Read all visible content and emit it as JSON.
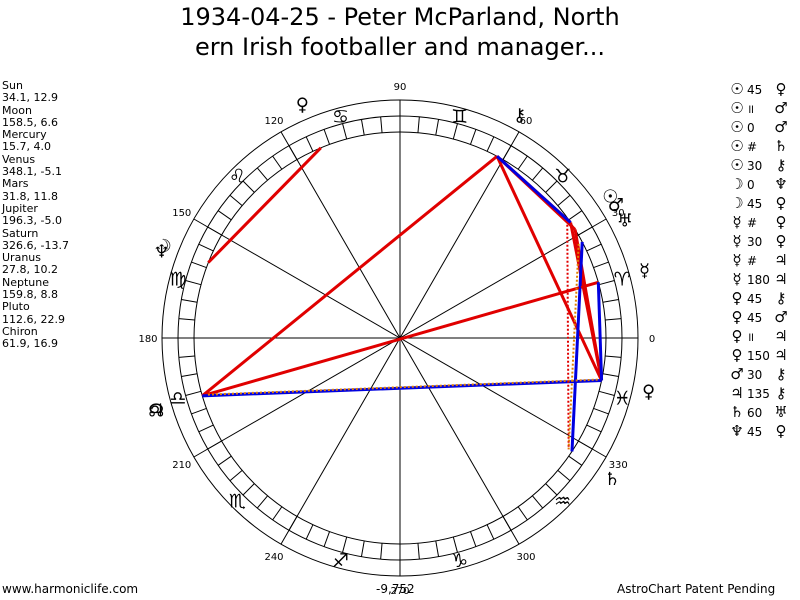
{
  "title": {
    "line1": "1934-04-25 - Peter McParland, North",
    "line2": "ern Irish footballer and manager..."
  },
  "planets": [
    {
      "name": "Sun",
      "values": "34.1, 12.9"
    },
    {
      "name": "Moon",
      "values": "158.5, 6.6"
    },
    {
      "name": "Mercury",
      "values": "15.7, 4.0"
    },
    {
      "name": "Venus",
      "values": "348.1, -5.1"
    },
    {
      "name": "Mars",
      "values": "31.8, 11.8"
    },
    {
      "name": "Jupiter",
      "values": "196.3, -5.0"
    },
    {
      "name": "Saturn",
      "values": "326.6, -13.7"
    },
    {
      "name": "Uranus",
      "values": "27.8, 10.2"
    },
    {
      "name": "Neptune",
      "values": "159.8, 8.8"
    },
    {
      "name": "Pluto",
      "values": "112.6, 22.9"
    },
    {
      "name": "Chiron",
      "values": "61.9, 16.9"
    }
  ],
  "aspects_list": [
    {
      "g1": "☉",
      "aspect": "45",
      "g2": "♀"
    },
    {
      "g1": "☉",
      "aspect": "॥",
      "g2": "♂"
    },
    {
      "g1": "☉",
      "aspect": "0",
      "g2": "♂"
    },
    {
      "g1": "☉",
      "aspect": "#",
      "g2": "♄"
    },
    {
      "g1": "☉",
      "aspect": "30",
      "g2": "⚷"
    },
    {
      "g1": "☽",
      "aspect": "0",
      "g2": "♆"
    },
    {
      "g1": "☽",
      "aspect": "45",
      "g2": "♀"
    },
    {
      "g1": "☿",
      "aspect": "#",
      "g2": "♀"
    },
    {
      "g1": "☿",
      "aspect": "30",
      "g2": "♀"
    },
    {
      "g1": "☿",
      "aspect": "#",
      "g2": "♃"
    },
    {
      "g1": "☿",
      "aspect": "180",
      "g2": "♃"
    },
    {
      "g1": "♀",
      "aspect": "45",
      "g2": "⚷"
    },
    {
      "g1": "♀",
      "aspect": "45",
      "g2": "♂"
    },
    {
      "g1": "♀",
      "aspect": "॥",
      "g2": "♃"
    },
    {
      "g1": "♀",
      "aspect": "150",
      "g2": "♃"
    },
    {
      "g1": "♂",
      "aspect": "30",
      "g2": "⚷"
    },
    {
      "g1": "♃",
      "aspect": "135",
      "g2": "⚷"
    },
    {
      "g1": "♄",
      "aspect": "60",
      "g2": "♅"
    },
    {
      "g1": "♆",
      "aspect": "45",
      "g2": "♀"
    }
  ],
  "wheel": {
    "degree_labels": [
      "0",
      "30",
      "60",
      "90",
      "120",
      "150",
      "180",
      "210",
      "240",
      "270",
      "300",
      "330"
    ],
    "sign_glyphs": [
      "♈",
      "♉",
      "♊",
      "♋",
      "♌",
      "♍",
      "♎",
      "♏",
      "♐",
      "♑",
      "♒",
      "♓"
    ],
    "planet_glyphs": [
      {
        "name": "sun",
        "glyph": "☉",
        "lon": 34.1
      },
      {
        "name": "moon",
        "glyph": "☽",
        "lon": 158.5
      },
      {
        "name": "mercury",
        "glyph": "☿",
        "lon": 15.7
      },
      {
        "name": "venus",
        "glyph": "♀",
        "lon": 348.1
      },
      {
        "name": "mars",
        "glyph": "♂",
        "lon": 31.8
      },
      {
        "name": "jupiter",
        "glyph": "♃",
        "lon": 196.3
      },
      {
        "name": "saturn",
        "glyph": "♄",
        "lon": 326.6
      },
      {
        "name": "uranus",
        "glyph": "♅",
        "lon": 27.8
      },
      {
        "name": "neptune",
        "glyph": "♆",
        "lon": 159.8
      },
      {
        "name": "pluto",
        "glyph": "♀",
        "lon": 112.6
      },
      {
        "name": "chiron",
        "glyph": "⚷",
        "lon": 61.9
      },
      {
        "name": "node",
        "glyph": "☊",
        "lon": 196.3
      }
    ],
    "aspect_lines": [
      {
        "from": 34.1,
        "to": 348.1,
        "color": "#e00000"
      },
      {
        "from": 34.1,
        "to": 61.9,
        "color": "#e00000"
      },
      {
        "from": 31.8,
        "to": 61.9,
        "color": "#e00000"
      },
      {
        "from": 158.5,
        "to": 112.6,
        "color": "#e00000"
      },
      {
        "from": 15.7,
        "to": 196.3,
        "color": "#e00000"
      },
      {
        "from": 348.1,
        "to": 31.8,
        "color": "#e00000"
      },
      {
        "from": 348.1,
        "to": 61.9,
        "color": "#e00000"
      },
      {
        "from": 61.9,
        "to": 196.3,
        "color": "#e00000"
      },
      {
        "from": 348.1,
        "to": 196.3,
        "color": "#0000e0"
      },
      {
        "from": 326.6,
        "to": 27.8,
        "color": "#0000e0"
      },
      {
        "from": 61.9,
        "to": 34.1,
        "color": "#0000e0"
      },
      {
        "from": 15.7,
        "to": 348.1,
        "color": "#0000e0"
      }
    ],
    "dotted_lines": [
      {
        "from": 15.7,
        "to": 196.3,
        "color": "#e00000"
      },
      {
        "from": 348.1,
        "to": 196.3,
        "color": "#e08000"
      },
      {
        "from": 34.1,
        "to": 326.6,
        "color": "#e00000"
      },
      {
        "from": 27.8,
        "to": 326.6,
        "color": "#e08000"
      }
    ]
  },
  "footer": {
    "left": "www.harmoniclife.com",
    "center": "-9,752",
    "right": "AstroChart Patent Pending"
  }
}
